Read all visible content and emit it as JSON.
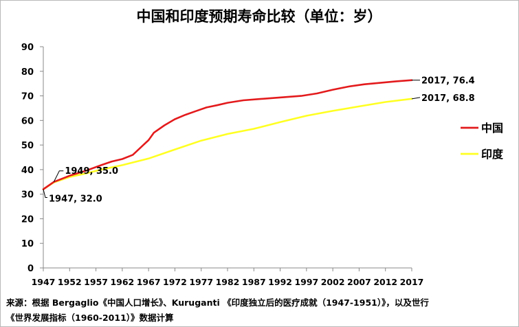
{
  "chart_data": {
    "type": "line",
    "title": "中国和印度预期寿命比较（单位：岁）",
    "xlabel": "",
    "ylabel": "",
    "xlim": [
      1947,
      2017
    ],
    "ylim": [
      0,
      90
    ],
    "yticks": [
      0,
      10,
      20,
      30,
      40,
      50,
      60,
      70,
      80,
      90
    ],
    "xticks": [
      1947,
      1952,
      1957,
      1962,
      1967,
      1972,
      1977,
      1982,
      1987,
      1992,
      1997,
      2002,
      2007,
      2012,
      2017
    ],
    "legend_position": "right",
    "grid": false,
    "series": [
      {
        "name": "中国",
        "color": "#e31a1c",
        "points": [
          [
            1947,
            32.0
          ],
          [
            1949,
            35.0
          ],
          [
            1952,
            37.5
          ],
          [
            1955,
            39.5
          ],
          [
            1958,
            41.8
          ],
          [
            1960,
            43.3
          ],
          [
            1962,
            44.3
          ],
          [
            1964,
            46.0
          ],
          [
            1966,
            50.0
          ],
          [
            1967,
            52.0
          ],
          [
            1968,
            55.0
          ],
          [
            1970,
            58.0
          ],
          [
            1972,
            60.5
          ],
          [
            1974,
            62.3
          ],
          [
            1976,
            63.8
          ],
          [
            1978,
            65.3
          ],
          [
            1980,
            66.2
          ],
          [
            1982,
            67.2
          ],
          [
            1985,
            68.2
          ],
          [
            1988,
            68.7
          ],
          [
            1990,
            69.0
          ],
          [
            1993,
            69.5
          ],
          [
            1996,
            70.0
          ],
          [
            1999,
            71.0
          ],
          [
            2002,
            72.5
          ],
          [
            2005,
            73.8
          ],
          [
            2008,
            74.7
          ],
          [
            2011,
            75.3
          ],
          [
            2014,
            75.9
          ],
          [
            2017,
            76.4
          ]
        ]
      },
      {
        "name": "印度",
        "color": "#ffff22",
        "points": [
          [
            1947,
            32.0
          ],
          [
            1949,
            34.8
          ],
          [
            1952,
            37.0
          ],
          [
            1955,
            38.4
          ],
          [
            1958,
            40.0
          ],
          [
            1962,
            41.8
          ],
          [
            1967,
            44.5
          ],
          [
            1972,
            48.2
          ],
          [
            1977,
            51.8
          ],
          [
            1982,
            54.5
          ],
          [
            1987,
            56.6
          ],
          [
            1992,
            59.3
          ],
          [
            1997,
            61.9
          ],
          [
            2002,
            63.9
          ],
          [
            2007,
            65.7
          ],
          [
            2012,
            67.5
          ],
          [
            2017,
            68.8
          ]
        ]
      }
    ],
    "annotations": [
      {
        "label": "1947, 32.0",
        "x": 1947,
        "y": 32.0
      },
      {
        "label": "1949, 35.0",
        "x": 1949,
        "y": 35.0
      },
      {
        "label": "2017, 76.4",
        "x": 2017,
        "y": 76.4
      },
      {
        "label": "2017, 68.8",
        "x": 2017,
        "y": 68.8
      }
    ]
  },
  "source": {
    "line1": "来源：根据 Bergaglio《中国人口增长》、Kuruganti 《印度独立后的医疗成就（1947-1951）》，以及世行",
    "line2": "《世界发展指标（1960-2011）》数据计算"
  }
}
